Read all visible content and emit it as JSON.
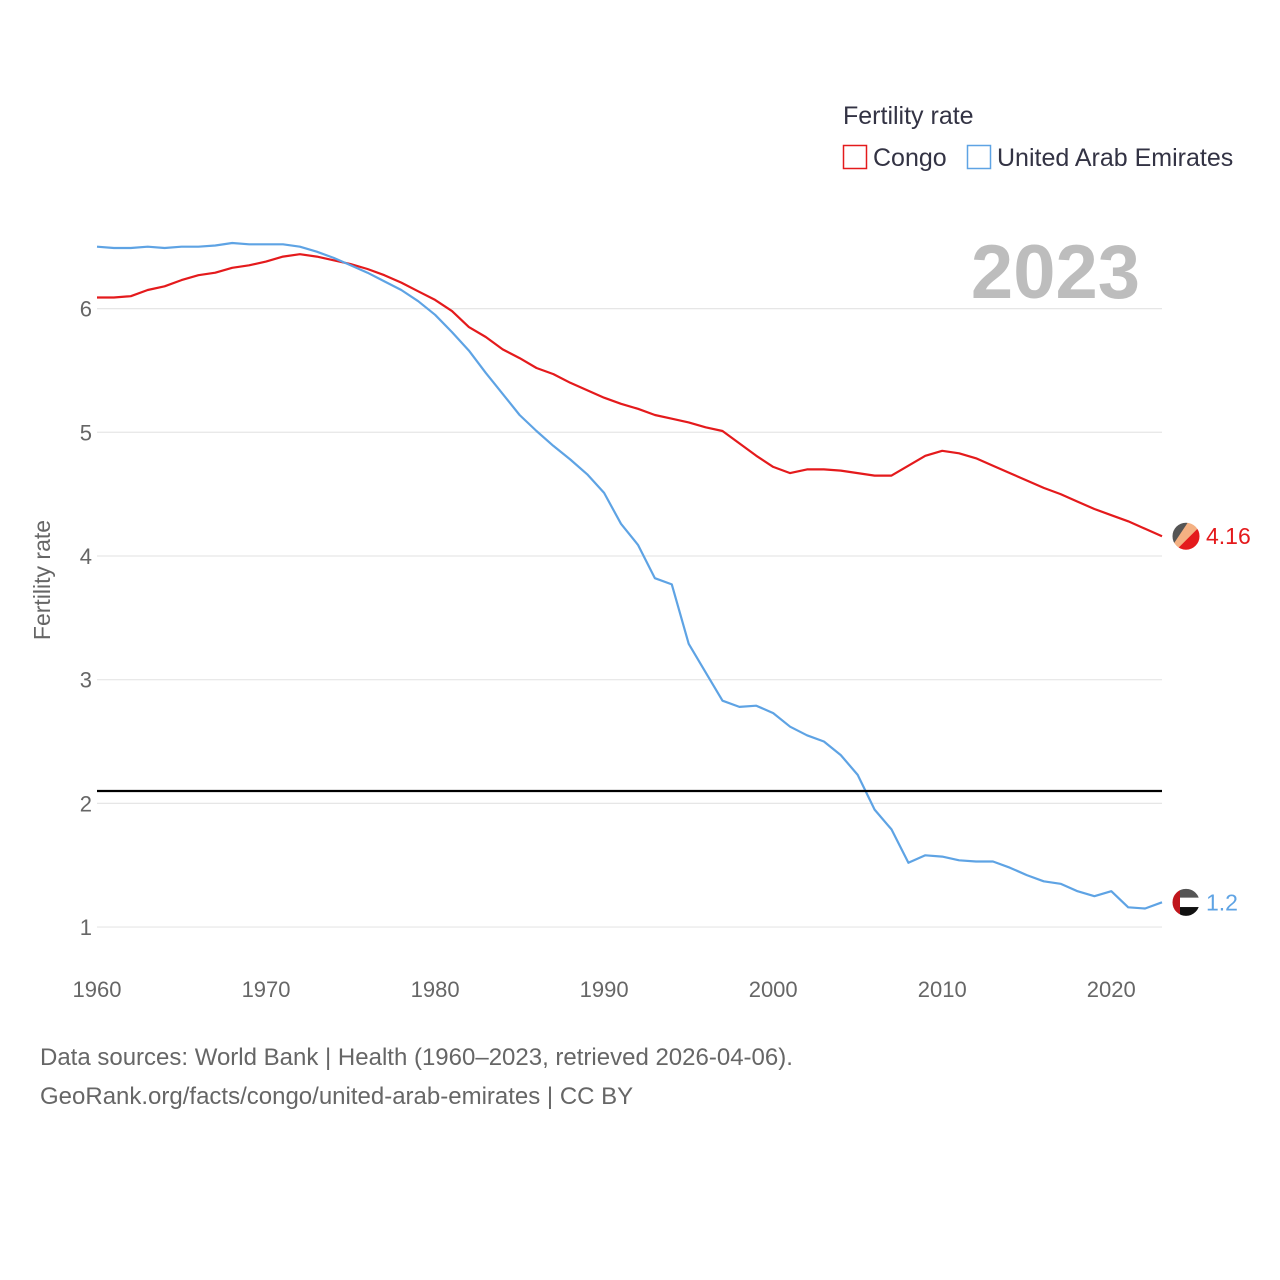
{
  "chart_data": {
    "type": "line",
    "ylabel": "Fertility rate",
    "xlabel": "",
    "xlim": [
      1960,
      2023
    ],
    "ylim": [
      0.75,
      6.7
    ],
    "x_ticks": [
      1960,
      1970,
      1980,
      1990,
      2000,
      2010,
      2020
    ],
    "y_ticks": [
      1,
      2,
      3,
      4,
      5,
      6
    ],
    "year_label": "2023",
    "legend_title": "Fertility rate",
    "reference_line": 2.1,
    "colors": {
      "reference": "#000000",
      "grid": "#e6e6e6"
    },
    "x": [
      1960,
      1961,
      1962,
      1963,
      1964,
      1965,
      1966,
      1967,
      1968,
      1969,
      1970,
      1971,
      1972,
      1973,
      1974,
      1975,
      1976,
      1977,
      1978,
      1979,
      1980,
      1981,
      1982,
      1983,
      1984,
      1985,
      1986,
      1987,
      1988,
      1989,
      1990,
      1991,
      1992,
      1993,
      1994,
      1995,
      1996,
      1997,
      1998,
      1999,
      2000,
      2001,
      2002,
      2003,
      2004,
      2005,
      2006,
      2007,
      2008,
      2009,
      2010,
      2011,
      2012,
      2013,
      2014,
      2015,
      2016,
      2017,
      2018,
      2019,
      2020,
      2021,
      2022,
      2023
    ],
    "series": [
      {
        "name": "Congo",
        "color": "#e41a1c",
        "end_label": "4.16",
        "values": [
          6.09,
          6.09,
          6.1,
          6.15,
          6.18,
          6.23,
          6.27,
          6.29,
          6.33,
          6.35,
          6.38,
          6.42,
          6.44,
          6.42,
          6.39,
          6.36,
          6.32,
          6.27,
          6.21,
          6.14,
          6.07,
          5.98,
          5.85,
          5.77,
          5.67,
          5.6,
          5.52,
          5.47,
          5.4,
          5.34,
          5.28,
          5.23,
          5.19,
          5.14,
          5.11,
          5.08,
          5.04,
          5.01,
          4.91,
          4.81,
          4.72,
          4.67,
          4.7,
          4.7,
          4.69,
          4.67,
          4.65,
          4.65,
          4.73,
          4.81,
          4.85,
          4.83,
          4.79,
          4.73,
          4.67,
          4.61,
          4.55,
          4.5,
          4.44,
          4.38,
          4.33,
          4.28,
          4.22,
          4.16
        ]
      },
      {
        "name": "United Arab Emirates",
        "color": "#5ea3e4",
        "end_label": "1.2",
        "values": [
          6.5,
          6.49,
          6.49,
          6.5,
          6.49,
          6.5,
          6.5,
          6.51,
          6.53,
          6.52,
          6.52,
          6.52,
          6.5,
          6.46,
          6.41,
          6.35,
          6.29,
          6.22,
          6.15,
          6.06,
          5.95,
          5.81,
          5.66,
          5.48,
          5.31,
          5.14,
          5.01,
          4.89,
          4.78,
          4.66,
          4.51,
          4.26,
          4.09,
          3.82,
          3.77,
          3.29,
          3.06,
          2.83,
          2.78,
          2.79,
          2.73,
          2.62,
          2.55,
          2.5,
          2.39,
          2.23,
          1.95,
          1.79,
          1.52,
          1.58,
          1.57,
          1.54,
          1.53,
          1.53,
          1.48,
          1.42,
          1.37,
          1.35,
          1.29,
          1.25,
          1.29,
          1.16,
          1.15,
          1.2
        ]
      }
    ]
  },
  "footer": {
    "sources": "Data sources: World Bank | Health (1960–2023, retrieved 2026-04-06).",
    "attribution": "GeoRank.org/facts/congo/united-arab-emirates | CC BY"
  }
}
